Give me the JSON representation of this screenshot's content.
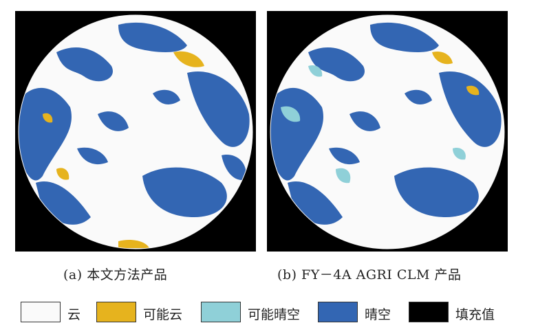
{
  "panels": [
    {
      "caption": "(a) 本文方法产品"
    },
    {
      "caption": "(b) FY－4A AGRI CLM 产品"
    }
  ],
  "legend": [
    {
      "label": "云",
      "color": "#fafafa"
    },
    {
      "label": "可能云",
      "color": "#e6b31e"
    },
    {
      "label": "可能晴空",
      "color": "#8fd0d8"
    },
    {
      "label": "晴空",
      "color": "#3366b3"
    },
    {
      "label": "填充值",
      "color": "#000000"
    }
  ],
  "colors": {
    "cloud": "#fafafa",
    "probably_cloud": "#e6b31e",
    "probably_clear": "#8fd0d8",
    "clear": "#3366b3",
    "fill": "#000000"
  }
}
